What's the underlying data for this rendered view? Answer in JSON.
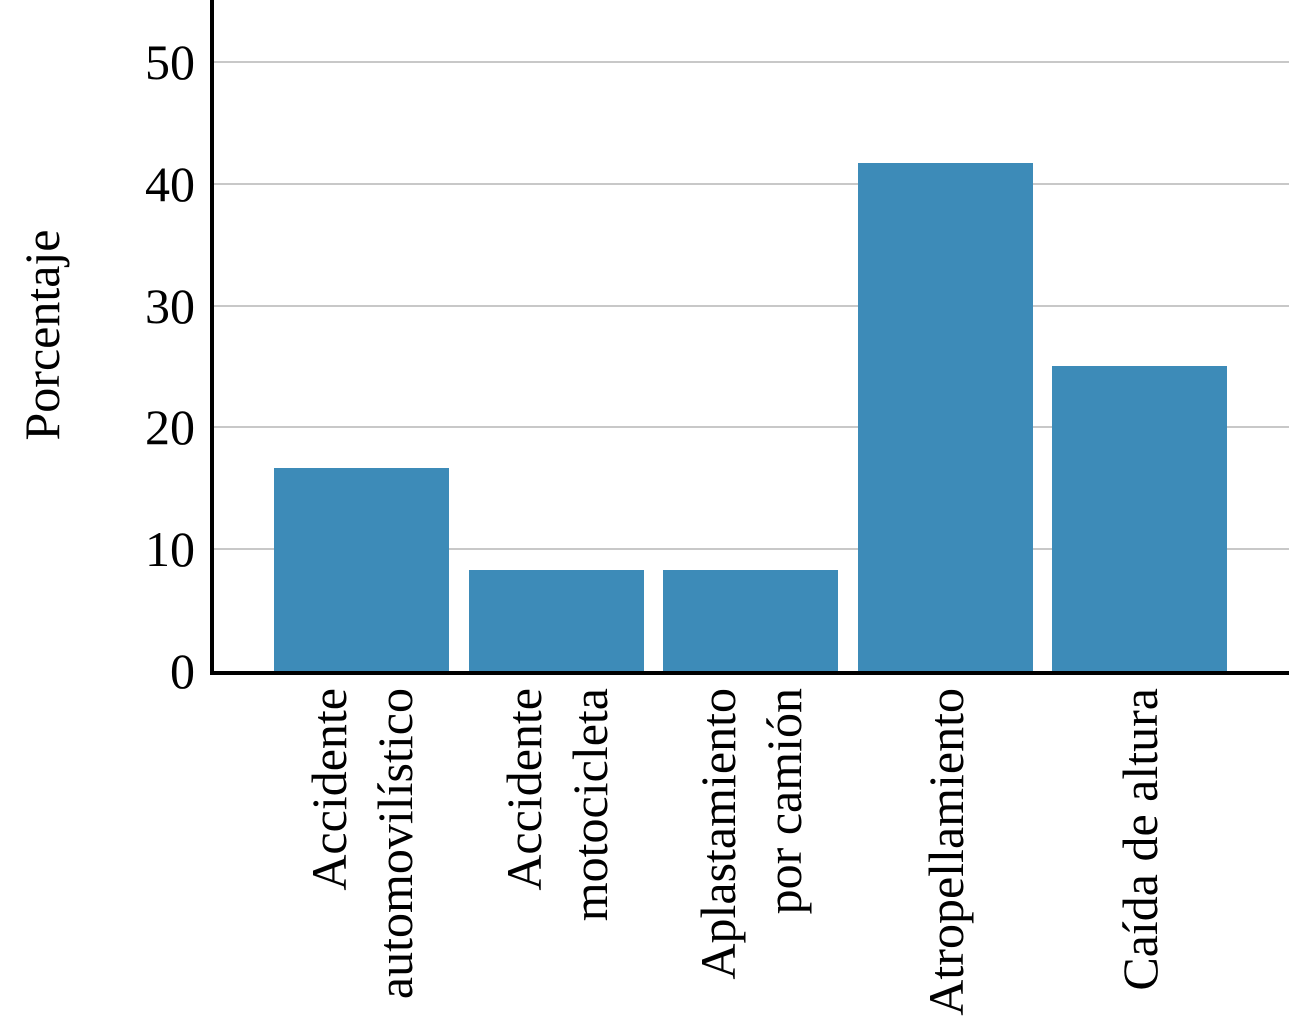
{
  "chart_data": {
    "type": "bar",
    "title": "",
    "xlabel": "",
    "ylabel": "Porcentaje",
    "categories": [
      "Accidente automovilístico",
      "Accidente motocicleta",
      "Aplastamiento por camión",
      "Atropellamiento",
      "Caída de altura"
    ],
    "category_lines": [
      [
        "Accidente",
        "automovilístico"
      ],
      [
        "Accidente",
        "motocicleta"
      ],
      [
        "Aplastamiento",
        "por camión"
      ],
      [
        "Atropellamiento"
      ],
      [
        "Caída de altura"
      ]
    ],
    "values": [
      16.7,
      8.3,
      8.3,
      41.7,
      25
    ],
    "yticks": [
      0,
      10,
      20,
      30,
      40,
      50
    ],
    "ylim": [
      0,
      55
    ],
    "grid": "horizontal",
    "legend": "none",
    "x_tick_rotation_deg": 90,
    "bar_color": "#3d8bb8",
    "gridline_color": "#c8c8c8",
    "axis_color": "#000000",
    "text_color": "#000000"
  }
}
